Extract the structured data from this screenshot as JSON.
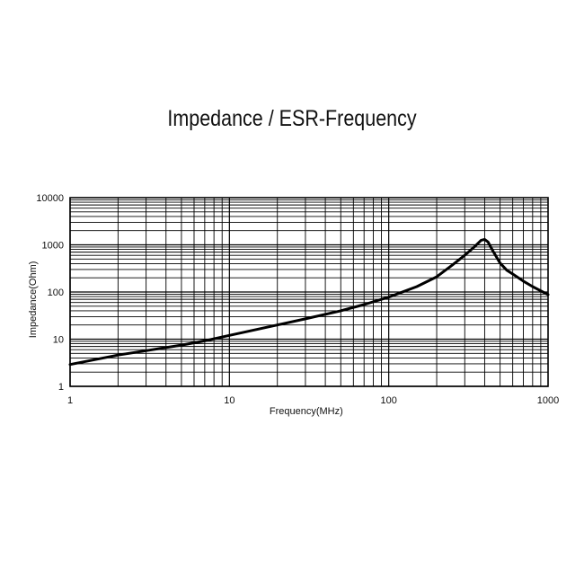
{
  "chart_data": {
    "type": "line",
    "title": "Impedance / ESR-Frequency",
    "xlabel": "Frequency(MHz)",
    "ylabel": "Impedance(Ohm)",
    "x_scale": "log",
    "y_scale": "log",
    "xlim": [
      1,
      1000
    ],
    "ylim": [
      1,
      10000
    ],
    "x_ticks": [
      "1",
      "10",
      "100",
      "1000"
    ],
    "y_ticks": [
      "1",
      "10",
      "100",
      "1000",
      "10000"
    ],
    "grid": true,
    "series": [
      {
        "name": "",
        "color": "#000000",
        "x": [
          1,
          2,
          3,
          5,
          7,
          10,
          20,
          30,
          50,
          70,
          100,
          150,
          200,
          250,
          300,
          350,
          380,
          400,
          420,
          450,
          500,
          550,
          600,
          700,
          800,
          1000
        ],
        "y": [
          2.9,
          4.6,
          5.7,
          7.5,
          9.2,
          12,
          20,
          27,
          40,
          54,
          78,
          130,
          210,
          370,
          600,
          950,
          1250,
          1300,
          1150,
          750,
          410,
          290,
          240,
          170,
          130,
          88
        ]
      }
    ]
  }
}
